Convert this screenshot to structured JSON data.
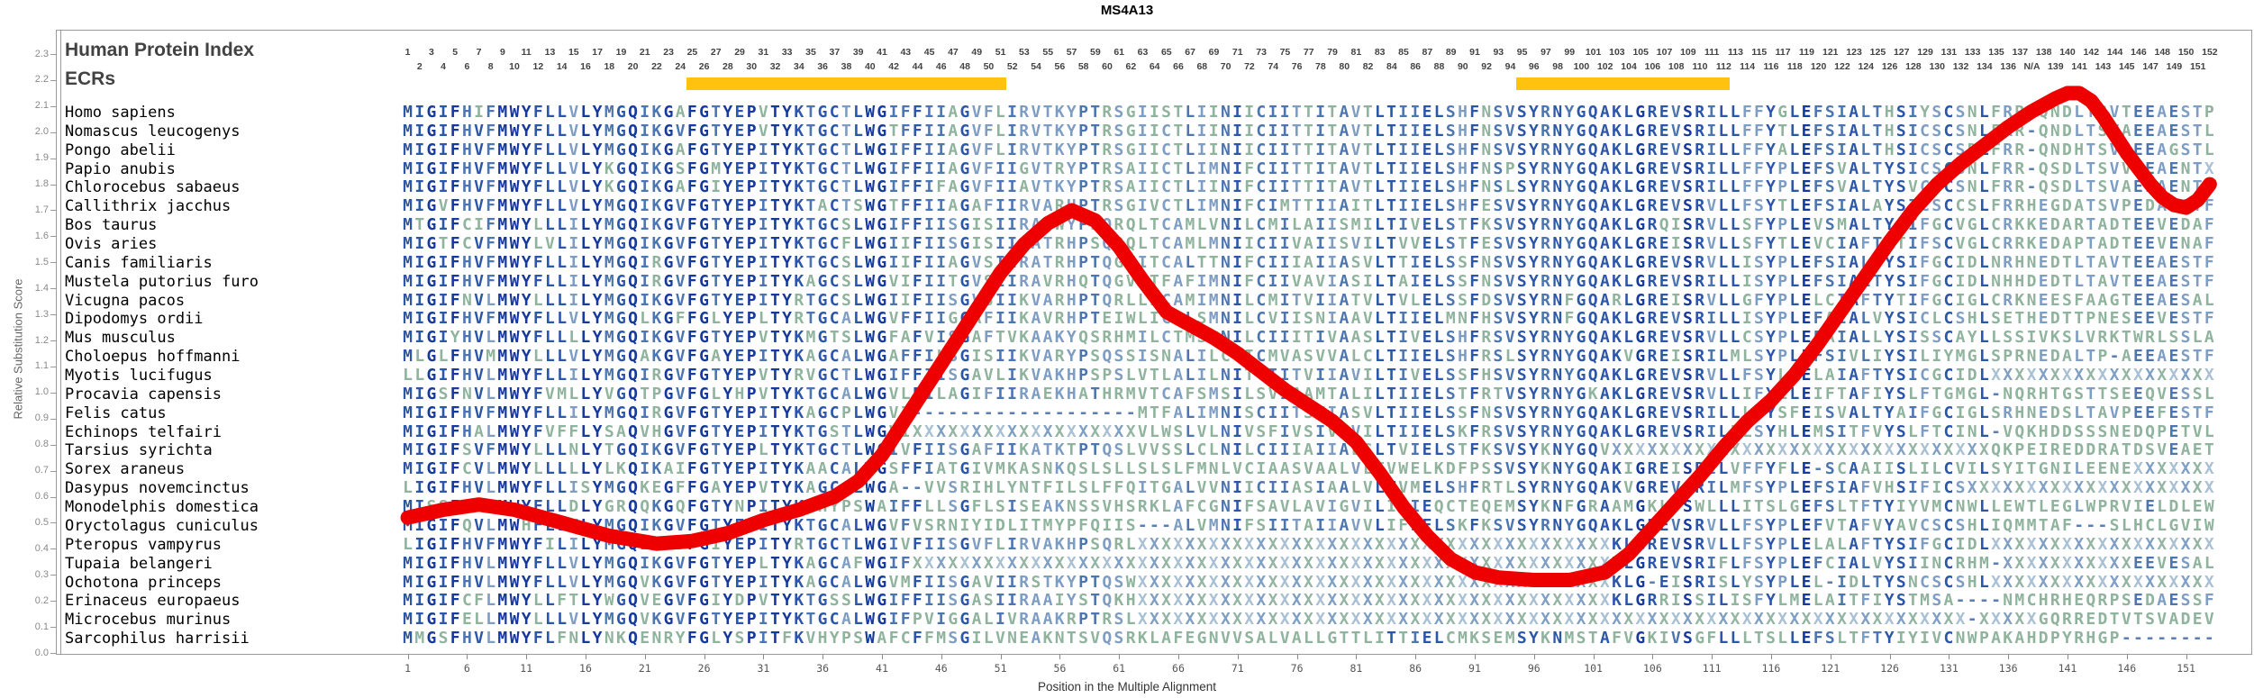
{
  "title": "MS4A13",
  "header": {
    "row1_label": "Human Protein Index",
    "row2_label": "ECRs"
  },
  "y_axis": {
    "label": "Relative Substitution Score",
    "min": 0.0,
    "max": 2.3,
    "tick_step": 0.1
  },
  "x_axis": {
    "label": "Position in the Multiple Alignment",
    "tick_start": 1,
    "tick_step": 5,
    "tick_end": 151
  },
  "colors": {
    "conservation_palette": [
      "#16399c",
      "#2c57a8",
      "#4d76b0",
      "#7e9dc3",
      "#8fb39d"
    ],
    "gap": "#5b7fb5",
    "x_shades": [
      "#7f9fc4",
      "#94b5a3",
      "#a9c0d4"
    ],
    "curve": "#ee0000",
    "ecr_bar": "#ffc20e",
    "axis_text": "#8a8a8a",
    "position_text": "#434343",
    "label_text": "#424242"
  },
  "alignment": {
    "num_columns": 153,
    "na_column": 138,
    "na_label": "N/A",
    "ecr_regions": [
      {
        "start": 25,
        "end": 51
      },
      {
        "start": 95,
        "end": 112
      }
    ],
    "rows": [
      {
        "species": "Homo sapiens",
        "seq": "MIGIFHIFMWYFLLVLYMGQIKGAFGTYEPVTYKTGCTLWGIFFIIAGVFLIRVTKYPTRSGIISTLIINIICIITTITAVTLTIIELSHFNSVSYRNYGQAKLGREVSRILLFFYGLEFSIALTHSIYSCSNLFRR-QNDLTSVTEEAESTP"
      },
      {
        "species": "Nomascus leucogenys",
        "seq": "MIGIFHVFMWYFLLVLYMGQIKGVFGTYEPVTYKTGCTLWGTFFIIAGVFLIRVTKYPTRSGIICTLIINIICIITTITAVTLTIIELSHFNSVSYRNYGQAKLGREVSRILLFFYTLEFSIALTHSICSCSNLFRR-QNDLTSVAEEAESTL"
      },
      {
        "species": "Pongo abelii",
        "seq": "MIGIFHVFMWYFLLVLYMGQIKGAFGTYEPITYKTGCTLWGIFFIIAGVFLIRVTKYPTRSGIICTLIINIICIITTITAVTLTIIELSHFNSVSYRNYGQAKLGREVSRILLFFYALEFSIALTHSICSCSDLFRR-QNDHTSVAEEAGSTL"
      },
      {
        "species": "Papio anubis",
        "seq": "MIGIFHVFMWYFLLVLYKGQIKGSFGMYEPITYKTGCTLWGIFFIIAGVFIIGVTRYPTRSAIICTLIMNIFCIITTITAVTLTIIELSHFNSPSYRNYGQAKLGREVSRILLFFYPLEFSVALTYSICSCSNLFRR-QSDLTSVVEEAENTX"
      },
      {
        "species": "Chlorocebus sabaeus",
        "seq": "MIGIFHVFMWYFLLVLYKGQIKGAFGIYEPITYKTGCTLWGIFFIFAGVFIIAVTKYPTRSAIICTLIINIFCIITTITAVTLTIIELSHFNSLSYRNYGQAKLGREVSRILLFFYPLEFSVALTYSVCSCSNLFRR-QSDLTSVAEEAENTX"
      },
      {
        "species": "Callithrix jacchus",
        "seq": "MIGVFHVFMWYFLLVLYMGQIKGVFGTYEPITYKTACTSWGTFFIIAGAFIIRVARHPTRSGIVCTLIMNIFCIMTTIIAITLTIIELSHFESVSYRNYGQAKLGREVSRVLLFSYTLEFSIALAYSICSCCSLFRRHEGDATSVPEDAESTF"
      },
      {
        "species": "Bos taurus",
        "seq": "MTGIFCIFMWYLLLILYMGQIKGVFGTYEPITYKTGCSLWGIFFIISGISIIRATWYPSQRQLTCAMLVNILCMILAIISMILTIVELSTFKSVSYRNYGQAKLGRQISRVLLSFYPLEVSMALTYSIFGCVGLCRKKEDARTADTEEVEDAF"
      },
      {
        "species": "Ovis aries",
        "seq": "MIGTFCVFMWYLVLILYMGQIKGVFGTYEPITYKTGCFLWGIIFIISGISIIGATRHPSQRQLTCAMLMNIICIIVAIISVILTVVELSTFESVSYRNYGQAKLGREISRVLLSFYTLEVCIAFTYTIFSCVGLCRRKEDAPTADTEEVENAF"
      },
      {
        "species": "Canis familiaris",
        "seq": "MIGIFHVFMWYFLLILYMGQIRGVFGTYEPITYKTGCSLWGIIFIIAGVSIIRATRHPTQGMITCALTTNIFCIIIAIIASVLTTIELSSFNSVSYRNYGQAKLGREVSRVLLISYPLEFSIALTYSIFGCIDLNRHNEDTLTAVTEEAESTF"
      },
      {
        "species": "Mustela putorius furo",
        "seq": "MIGIFHVFMWYFLLILYMGQIRGVFGTYEPITYKAGCSLWGVIFIITGVSIIRAVRHQTQGVITFAFIMNIFCIIVAVIASILTAIELSSFNSVSYRNYGQAKLGREVSRILLISYPLEFSIALTYSIFGCIDLNHHDEDTLTAVTEEAESTF"
      },
      {
        "species": "Vicugna pacos",
        "seq": "MIGIFNVLMWYLLLILYMGQIKGVFGTYEPITYRTGCSLWGIIFIISGVSIIKVARHPTQRLLICAMIMNILCMITVIIATVLTVLELSSFDSVSYRNFGQARLGREISRVLLGFYPLELCIAFTYTIFGCIGLCRKNEESFAAGTEEAESAL"
      },
      {
        "species": "Dipodomys ordii",
        "seq": "MIGIFHVFMWYFLLVLYMGQLKGFFGLYEPLTYRTGCALWGVFFIIGGAFIIKAVRHPTEIWLICSLSMNILCVIISNIAAVLTIIELMNFHSVSYRNFGQAKLGREVSRILLISYPLEFAIALVYSICLCSHLSETHEDTTPNESEEVESTF"
      },
      {
        "species": "Mus musculus",
        "seq": "MIGIYHVLMWYFLLLLYMGQIKGVFGTYEPVTYKMGTSLWGFAFVISGAFTVKAAKYQSRHMILCTMSLNILCIIITIVAASLTIVELSHFRSVSYRNYGQAKLGREVSRVLLCSYPLEFAIALLYSISSCAYLLSSIVKSLVRKTWRLSSLA"
      },
      {
        "species": "Choloepus hoffmanni",
        "seq": "MLGLFHVMMWYLLLVLYMGQAKGVFGAYEPITYKAGCALWGAFFILSGISIIKVARYPSQSSISNALILCVICMVASVVALCLTIIELSHFRSLSYRNYGQAKVGREISRILMLSYPLEFSIVLIYSILIYMGLSPRNEDALTP-AEEAESTF"
      },
      {
        "species": "Myotis lucifugus",
        "seq": "LLGIFHVLMWYFLLILYMGQIRGVFGTYEPVTYRVGCTLWGIFFIISGAVLIKVAKHPSPSLVTLALILNITCIITVIIAVILTIVELSSFHSVSYRNYGQAKLGREVSRVLLFSYLLELAIAFTYSICGCIDLXXXXXXXXXXXXXXXXXXX"
      },
      {
        "species": "Procavia capensis",
        "seq": "MIGSFNVLMWYFVMLLYVGQTPGVFGLYHPVTYKTGCALWGVLFILAGIFIIRAEKHATHRMVTCAFSMSILSVIAAMTALILTIIELSTFRTVSYRNYGKAKLGREVSRVLLIFYLLEIFTAFIYSLFTGMGL-NQRHTGSTTSEEQVESSL"
      },
      {
        "species": "Felis catus",
        "seq": "MIGIFHVFMWYFLLILYMGQIRGVFGTYEPITYKAGCPLWGVI-------------------MTFALIMNISCIITSVIASVLTIIELSSFNSVSYRNYGQAKLGREVSRILLLSYSFEISVALTYAIFGCIGLSRHNEDSLTAVPEEFESTF"
      },
      {
        "species": "Echinops telfairi",
        "seq": "MIGIFHALMWYFVFFLYSAQVHGVFGTYEPITYKTGSTLWGVIXXXXXXXXXXXXXXXXXXXVLWSLVLNIVSFIVSIVAVILTIIELSKFRSVSYRNYGQAKLGREVSRILILSYHLEMSITFVYSLFTCINL-VQKHDDSSSNEDQPETVL"
      },
      {
        "species": "Tarsius syrichta",
        "seq": "MIGIFSVFMWYLLLNLYTGQIKGVFGTYEPLTYKTGCTLWGIVFIISGAFIIKATKTPTQSLVVSSLCLNILCIIIAIIALSLTVIELSTFKSVSYKNYGQVXXXXXXXXXXXXXXXXXXXXXXXXXXXXXXXXQKPEIREDDRATDSVEAET"
      },
      {
        "species": "Sorex araneus",
        "seq": "MIGIFCVLMWYLLLLLYLKQIKAIFGTYEPITYKAACALWGSFFIATGIVMKASNKQSLSLLSLSLFMNLVCIAASVAALVLTVWELKDFPSSVSYKNYGQAKIGREISRILVFFYFLE-SCAAIISLILCVILSYITGNILEENEXXXXXXX"
      },
      {
        "species": "Dasypus novemcinctus",
        "seq": "LIGIFHVLMWYFLLISYMGQKEGFFGAYEPVTYKAGCALWGA--VVSRIHLYNTFILSLFFQITGALVVNIICIIASIAALVLTVMELSHFRTLSYRNYGQAKVGREVSRILMFSYPLEFSIAFVHSIFICSXXXXXXXXXXXXXXXXXXXXX"
      },
      {
        "species": "Monodelphis domestica",
        "seq": "MISSFHLFMWYFLLDLYGRQQKGQFGTYNPITYKIHYPSWAIFFLLSGFLSISEAKNSSVHSRKLAFCGNIFSAVLAVIGVILIIIEQCTEQEMSYKNFGRAAMGKLVSWLLLITSLGEFSLTFTYIYVMCNWLLEWTLEGLWPRVIELDLEW"
      },
      {
        "species": "Oryctolagus cuniculus",
        "seq": "MIGIFQVLMWHFLLVLYMGQIKGVFGTYEPITYKTGCALWGVFVSRNIYIDLITMYPFQIIS---ALVMNIFSIITAIIAVVLIFIELSKFKSVSYRNYGQAKLGREVSRVLLFSYPLEFVTAFVYAVCSCSHLIQMMTAF---SLHCLGVIW"
      },
      {
        "species": "Pteropus vampyrus",
        "seq": "LIGIFHVFMWYFILILYMGQIKGTFGIYEPITYRTGCTLWGIVFIISGVFLIRVAKHPSQRLXXXXXXXXXXXXXXXXXXXXXXXXXXXXXXXXXXXXXXXXKLGREVSRVLLFSYPLELALAFTYSIFGCIDLXXXXXXXXXXXXXXXXXXX"
      },
      {
        "species": "Tupaia belangeri",
        "seq": "MIGIFHVLMWYFLLVLYMGQIKGVFGTYEPLTYKAGCAFWGIFXXXXXXXXXXXXXXXXXXXXXXXXXXXXXXXXXXXXXXXXXXXXXXXXXXXXXXXXXXXKLGREVSRIFLFSYPLEFCIALVYSIINCRHM-XXXXXXXXXXXEEVESAL"
      },
      {
        "species": "Ochotona princeps",
        "seq": "MIGIFHVLMWYFLLVLYMGQVKGVFGTYEPITYKAGCALWGVMFIISGAVIIRSTKYPTQSWXXXXXXXXXXXXXXXXXXXXXXXXXXXXXXXXXXXXXXXXKLG-EISRISLYSYPLEL-IDLTYSNCSCSHLXXXXXXXXXXXXXXXXXXX"
      },
      {
        "species": "Erinaceus europaeus",
        "seq": "MIGIFCFLMWYLLFTLYWGQVEGVFGIYDPVTYKTGSSLWGIFFIISGASIIRAAIYSTQKHXXXXXXXXXXXXXXXXXXXXXXXXXXXXXXXXXXXXXXXXKLGRRISSILISFYLMELAITFIYSTMSA----NMCHRHEQRPSEDAESSF"
      },
      {
        "species": "Microcebus murinus",
        "seq": "MIGIFELLMWYLLLVLYMGQVKGVFGTYEPITYKTGCALWGIFPVIGGALIVRAAKRPTRSLXXXXXXXXXXXXXXXXXXXXXXXXXXXXXXXXXXXXXXXXXXXXXXXXXXXXXXXXXXXXXXXXXXXXXX-XXXXXGQRREDTVTSVADEVMSNY"
      },
      {
        "species": "Sarcophilus harrisii",
        "seq": "MMGSFHVLMWYFLFNLYNKQENRYFGLYSPITFKVHYPSWAFCFFMSGILVNEAKNTSVQSRKLAFEGNVVSALVALLGTTLITTIELCMKSEMSYKNMSTAFVGKIVSGFLLLTSLLEFSLTFTYIYIVCNWPAKAHDPYRHGP--------"
      }
    ]
  },
  "chart_data": {
    "type": "line",
    "title": "MS4A13",
    "xlabel": "Position in the Multiple Alignment",
    "ylabel": "Relative Substitution Score",
    "xlim": [
      1,
      153
    ],
    "ylim": [
      0,
      2.3
    ],
    "x_tick_start": 1,
    "x_tick_step": 5,
    "x_tick_end": 151,
    "grid": false,
    "legend": "none",
    "series": [
      {
        "name": "Relative Substitution Score",
        "points": [
          [
            1,
            0.52
          ],
          [
            4,
            0.55
          ],
          [
            7,
            0.57
          ],
          [
            10,
            0.55
          ],
          [
            14,
            0.5
          ],
          [
            18,
            0.45
          ],
          [
            22,
            0.42
          ],
          [
            25,
            0.43
          ],
          [
            28,
            0.46
          ],
          [
            31,
            0.51
          ],
          [
            34,
            0.55
          ],
          [
            37,
            0.6
          ],
          [
            39,
            0.66
          ],
          [
            41,
            0.76
          ],
          [
            43,
            0.9
          ],
          [
            45,
            1.04
          ],
          [
            47,
            1.18
          ],
          [
            49,
            1.32
          ],
          [
            51,
            1.46
          ],
          [
            53,
            1.57
          ],
          [
            55,
            1.65
          ],
          [
            57,
            1.7
          ],
          [
            59,
            1.66
          ],
          [
            61,
            1.56
          ],
          [
            63,
            1.43
          ],
          [
            65,
            1.31
          ],
          [
            67,
            1.26
          ],
          [
            69,
            1.21
          ],
          [
            71,
            1.15
          ],
          [
            73,
            1.08
          ],
          [
            75,
            1.01
          ],
          [
            77,
            0.95
          ],
          [
            79,
            0.89
          ],
          [
            81,
            0.81
          ],
          [
            83,
            0.69
          ],
          [
            85,
            0.56
          ],
          [
            87,
            0.45
          ],
          [
            89,
            0.36
          ],
          [
            91,
            0.31
          ],
          [
            93,
            0.29
          ],
          [
            96,
            0.28
          ],
          [
            99,
            0.28
          ],
          [
            102,
            0.31
          ],
          [
            104,
            0.38
          ],
          [
            106,
            0.48
          ],
          [
            108,
            0.58
          ],
          [
            110,
            0.68
          ],
          [
            112,
            0.79
          ],
          [
            114,
            0.89
          ],
          [
            116,
            0.97
          ],
          [
            118,
            1.07
          ],
          [
            120,
            1.19
          ],
          [
            122,
            1.32
          ],
          [
            124,
            1.45
          ],
          [
            126,
            1.58
          ],
          [
            128,
            1.7
          ],
          [
            130,
            1.8
          ],
          [
            132,
            1.88
          ],
          [
            134,
            1.95
          ],
          [
            136,
            2.02
          ],
          [
            138,
            2.08
          ],
          [
            140,
            2.13
          ],
          [
            141,
            2.15
          ],
          [
            142,
            2.15
          ],
          [
            143,
            2.12
          ],
          [
            144,
            2.06
          ],
          [
            145,
            1.99
          ],
          [
            146,
            1.92
          ],
          [
            147,
            1.86
          ],
          [
            148,
            1.8
          ],
          [
            149,
            1.75
          ],
          [
            150,
            1.72
          ],
          [
            151,
            1.71
          ],
          [
            152,
            1.74
          ],
          [
            153,
            1.8
          ]
        ]
      }
    ]
  }
}
